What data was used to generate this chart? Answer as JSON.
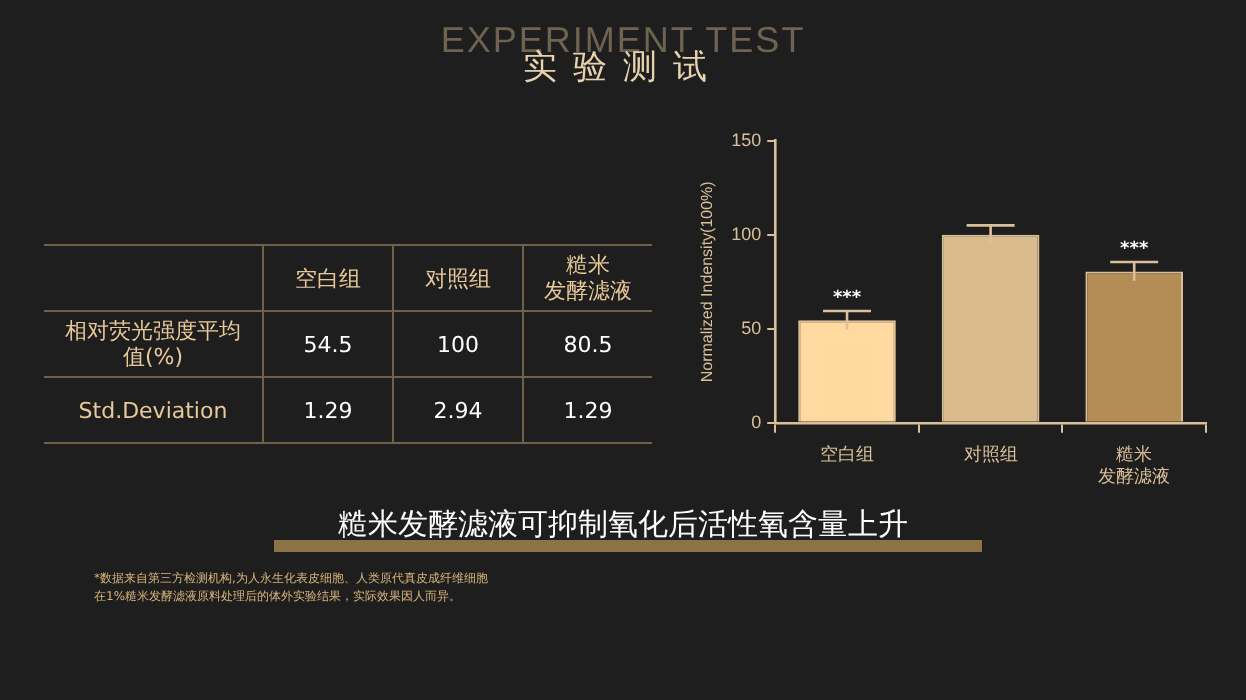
{
  "chart_data": [
    {
      "type": "other",
      "title": "实验测试",
      "subtitle": "EXPERIMENT TEST",
      "categories": [
        "空白组",
        "对照组",
        "糙米发酵滤液"
      ],
      "annotations": [
        "相对荧光强度平均值(%)",
        "54.5",
        "100",
        "80.5",
        "Std.Deviation",
        "1.29",
        "2.94",
        "1.29",
        "糙米发酵滤液可抑制氧化后活性氧含量上升",
        "*数据来自第三方检测机构,为人永生化表皮细胞、人类原代真皮成纤维细胞在1%糙米发酵滤液原料处理后的体外实验结果，实际效果因人而异。"
      ]
    },
    {
      "type": "bar",
      "ylabel": "Normalized Indensity(100%)",
      "categories": [
        "空白组",
        "对照组",
        "糙米发酵滤液"
      ],
      "values": [
        54.5,
        100,
        80.5
      ],
      "colors": [
        "#ffd9a0",
        "#d9bb8c",
        "#b38d55"
      ],
      "errors": [
        5,
        5,
        5
      ],
      "ylim": [
        0,
        150
      ],
      "yticks": [
        0,
        50,
        100,
        150
      ],
      "annotations": [
        {
          "text": "***",
          "x": "空白组",
          "y": 59.5
        },
        {
          "text": "***",
          "x": "糙米发酵滤液",
          "y": 85.5
        }
      ]
    }
  ]
}
